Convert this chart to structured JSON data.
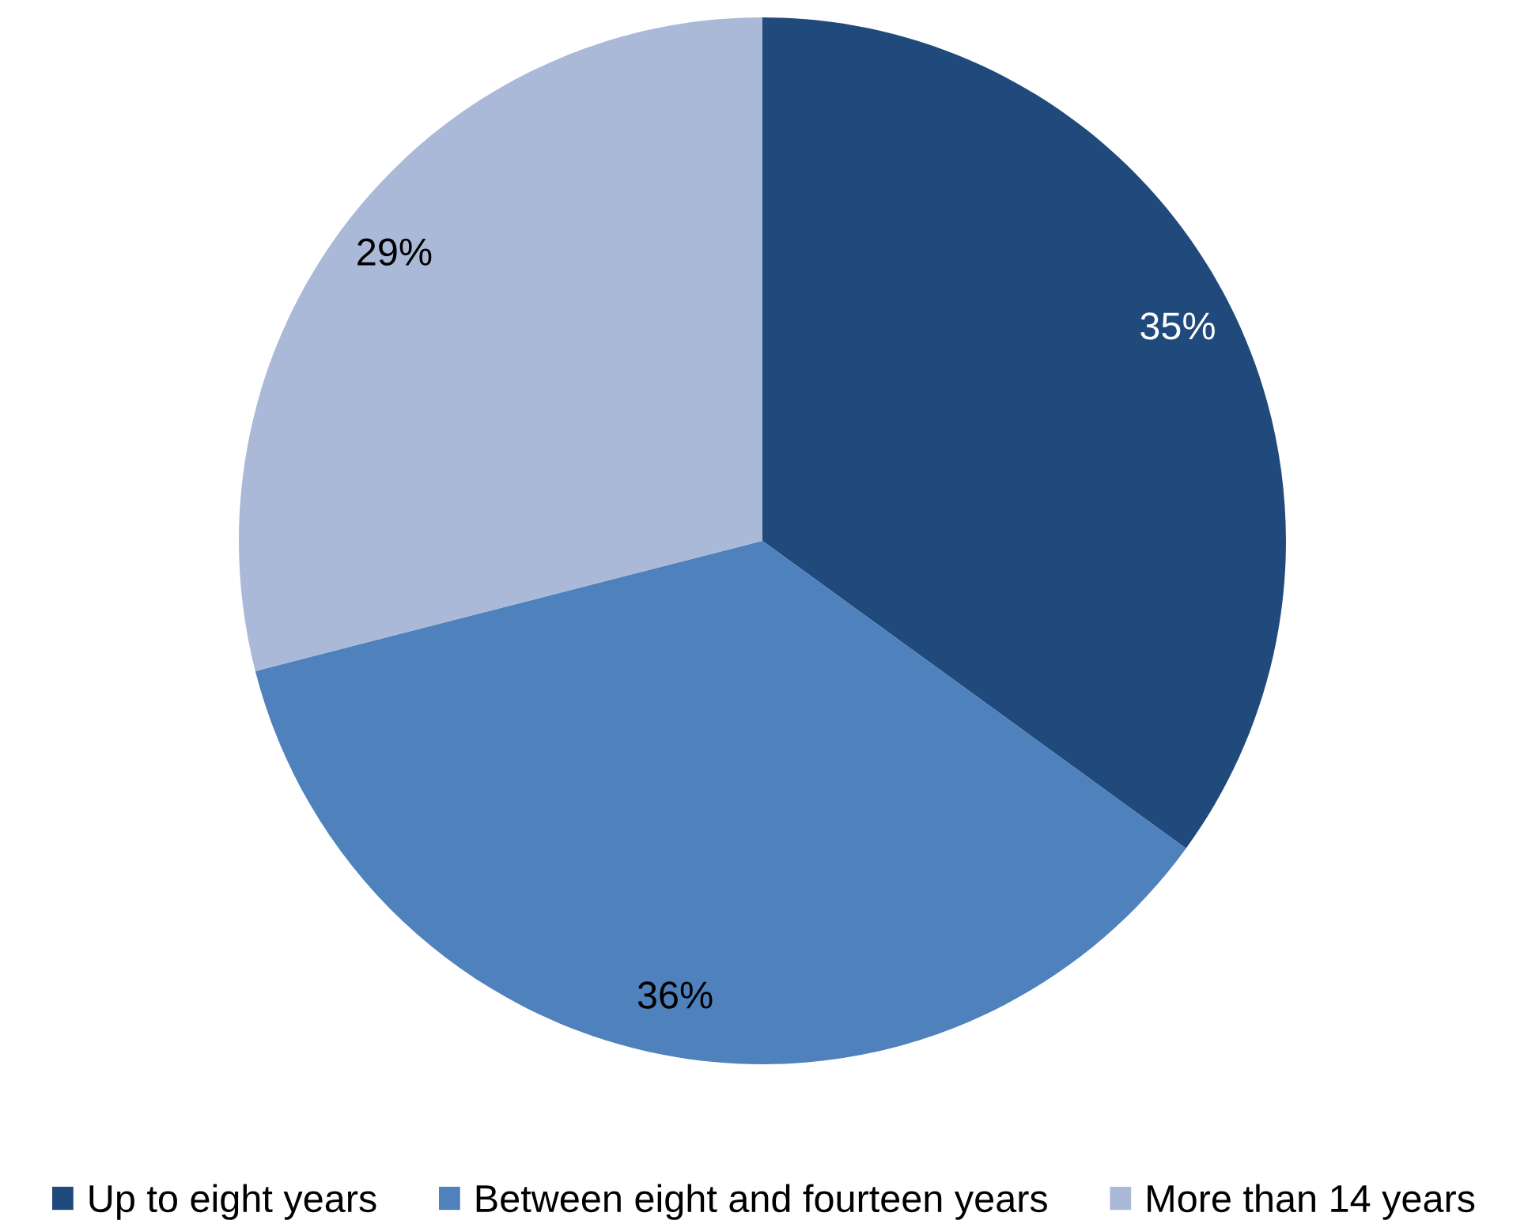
{
  "chart_data": {
    "type": "pie",
    "categories": [
      "Up to eight years",
      "Between eight and fourteen years",
      "More than 14 years"
    ],
    "values": [
      35,
      36,
      29
    ],
    "value_labels": [
      "35%",
      "36%",
      "29%"
    ],
    "colors": [
      "#214a7c",
      "#4f81bd",
      "#aab9d7"
    ],
    "legend": "bottom"
  }
}
